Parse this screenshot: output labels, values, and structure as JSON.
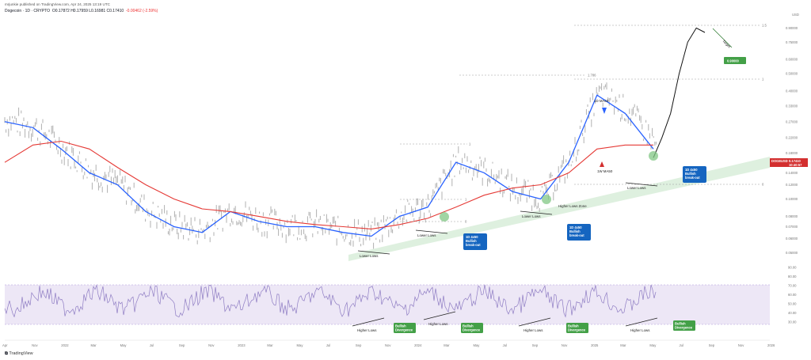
{
  "header": {
    "publisher": "mrjunkie published on TradingView.com, Apr 24, 2025 13:19 UTC"
  },
  "symbol_line": {
    "name": "Dogecoin · 1D · CRYPTO",
    "ohlc": "O0.17872  H0.17959  L0.16981  C0.17410",
    "change": "-0.00462 (-2.59%)"
  },
  "currency": "USD",
  "footer": {
    "brand": "TradingView"
  },
  "price_marker": {
    "symbol": "DOGEUSD",
    "value": "0.17410",
    "countdown": "10:40:57"
  },
  "colors": {
    "candles": "#b0b0b0",
    "ma_blue": "#2962ff",
    "ma_red": "#e53935",
    "rsi": "#8e7cc3",
    "rsi_band": "#ede7f6",
    "green_box": "#43a047",
    "blue_box": "#1565c0",
    "channel": "#c8e6c9"
  },
  "annotations": {
    "lower_lows": [
      "Lower Lows",
      "Lower Lows",
      "Lower Lows",
      "Lower Lows"
    ],
    "higher_lows": [
      "Higher Lows",
      "Higher Lows",
      "Higher Lows",
      "Higher Lows"
    ],
    "bullish_divergence": "Bullish Divergence",
    "bullish_breakout": "1D 4x50 Bullish break-out",
    "higher_lows_zone": "Higher Lows Zone",
    "ma_1d": "1D MA50",
    "ma_1w": "1W MA50",
    "target_label": "Target",
    "target_value": "0.90000"
  },
  "chart_data": {
    "type": "line",
    "title": "Dogecoin · 1D · CRYPTO",
    "time_axis": [
      "Apr",
      "Nov",
      "2022",
      "Mar",
      "May",
      "Jul",
      "Sep",
      "Nov",
      "2023",
      "Mar",
      "May",
      "Jul",
      "Sep",
      "Nov",
      "2024",
      "Mar",
      "May",
      "Jul",
      "Sep",
      "Nov",
      "2025",
      "Mar",
      "May",
      "Jul",
      "Sep",
      "Nov",
      "2026"
    ],
    "price_axis": [
      "0.90000",
      "0.75000",
      "0.60000",
      "0.50000",
      "0.40000",
      "0.33000",
      "0.27000",
      "0.22000",
      "0.18000",
      "0.14000",
      "0.12000",
      "0.10000",
      "0.08000",
      "0.07000",
      "0.06000",
      "0.05000"
    ],
    "rsi_axis": [
      "90.00",
      "80.00",
      "70.00",
      "60.00",
      "50.00",
      "40.00",
      "30.00"
    ],
    "fib_levels": [
      "1.5",
      "1.786",
      "1",
      "1",
      "1",
      "0",
      "0"
    ],
    "series": [
      {
        "name": "1D MA50",
        "values": [
          0.27,
          0.25,
          0.19,
          0.14,
          0.12,
          0.085,
          0.07,
          0.065,
          0.085,
          0.075,
          0.07,
          0.07,
          0.065,
          0.062,
          0.08,
          0.09,
          0.16,
          0.14,
          0.11,
          0.1,
          0.16,
          0.38,
          0.3,
          0.19
        ]
      },
      {
        "name": "1W MA50",
        "values": [
          0.16,
          0.2,
          0.21,
          0.19,
          0.15,
          0.12,
          0.1,
          0.088,
          0.085,
          0.08,
          0.075,
          0.072,
          0.07,
          0.068,
          0.072,
          0.078,
          0.09,
          0.105,
          0.115,
          0.12,
          0.14,
          0.19,
          0.2,
          0.2
        ]
      },
      {
        "name": "Projection",
        "values": [
          0.17,
          0.22,
          0.3,
          0.5,
          0.75,
          0.9,
          0.85
        ]
      }
    ]
  }
}
